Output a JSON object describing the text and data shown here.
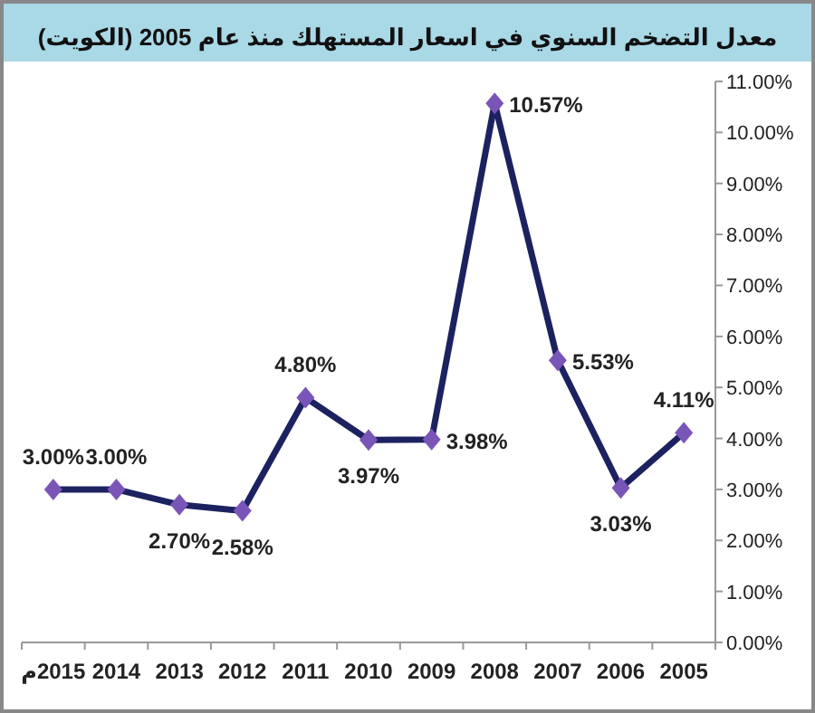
{
  "chart_data": {
    "type": "line",
    "title": "معدل التضخم السنوي في اسعار المستهلك منذ عام 2005 (الكويت)",
    "categories": [
      "2015م",
      "2014",
      "2013",
      "2012",
      "2011",
      "2010",
      "2009",
      "2008",
      "2007",
      "2006",
      "2005"
    ],
    "series": [
      {
        "color": "#1c2260",
        "values": [
          3.0,
          3.0,
          2.7,
          2.58,
          4.8,
          3.97,
          3.98,
          10.57,
          5.53,
          3.03,
          4.11
        ],
        "value_labels": [
          "3.00%",
          "3.00%",
          "2.70%",
          "2.58%",
          "4.80%",
          "3.97%",
          "3.98%",
          "10.57%",
          "5.53%",
          "3.03%",
          "4.11%"
        ]
      }
    ],
    "marker": "diamond",
    "ylim": [
      0,
      11
    ],
    "yticks": [
      {
        "value": 0,
        "label": "0.00%"
      },
      {
        "value": 1,
        "label": "1.00%"
      },
      {
        "value": 2,
        "label": "2.00%"
      },
      {
        "value": 3,
        "label": "3.00%"
      },
      {
        "value": 4,
        "label": "4.00%"
      },
      {
        "value": 5,
        "label": "5.00%"
      },
      {
        "value": 6,
        "label": "6.00%"
      },
      {
        "value": 7,
        "label": "7.00%"
      },
      {
        "value": 8,
        "label": "8.00%"
      },
      {
        "value": 9,
        "label": "9.00%"
      },
      {
        "value": 10,
        "label": "10.00%"
      },
      {
        "value": 11,
        "label": "11.00%"
      }
    ],
    "grid": false
  }
}
